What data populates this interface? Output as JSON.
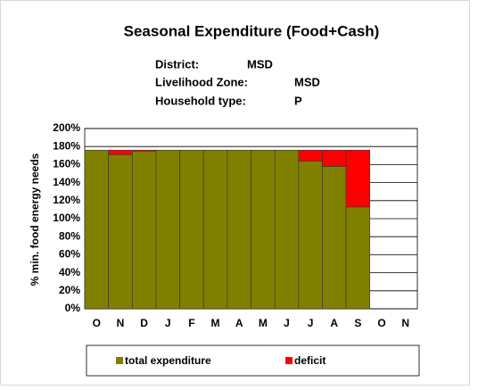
{
  "chart_data": {
    "type": "stacked-bar",
    "title": "Seasonal Expenditure (Food+Cash)",
    "info": [
      {
        "label": "District:",
        "value": "MSD"
      },
      {
        "label": "Livelihood Zone:",
        "value": "MSD"
      },
      {
        "label": "Household type:",
        "value": "P"
      }
    ],
    "y_label": "% min. food energy needs",
    "categories": [
      "O",
      "N",
      "D",
      "J",
      "F",
      "M",
      "A",
      "M",
      "J",
      "J",
      "A",
      "S",
      "O",
      "N"
    ],
    "series": [
      {
        "name": "total expenditure",
        "color": "#808000",
        "values": [
          176,
          171,
          175,
          176,
          176,
          176,
          176,
          176,
          176,
          164,
          158,
          113,
          null,
          null
        ]
      },
      {
        "name": "deficit",
        "color": "#ff0000",
        "values": [
          0,
          5,
          1,
          0,
          0,
          0,
          0,
          0,
          0,
          12,
          18,
          63,
          null,
          null
        ]
      }
    ],
    "ylim": [
      0,
      200
    ],
    "yticks": [
      {
        "value": 0,
        "label": "0%"
      },
      {
        "value": 20,
        "label": "20%"
      },
      {
        "value": 40,
        "label": "40%"
      },
      {
        "value": 60,
        "label": "60%"
      },
      {
        "value": 80,
        "label": "80%"
      },
      {
        "value": 100,
        "label": "100%"
      },
      {
        "value": 120,
        "label": "120%"
      },
      {
        "value": 140,
        "label": "140%"
      },
      {
        "value": 160,
        "label": "160%"
      },
      {
        "value": 180,
        "label": "180%"
      },
      {
        "value": 200,
        "label": "200%"
      }
    ],
    "grid": true,
    "legend": "bottom"
  }
}
